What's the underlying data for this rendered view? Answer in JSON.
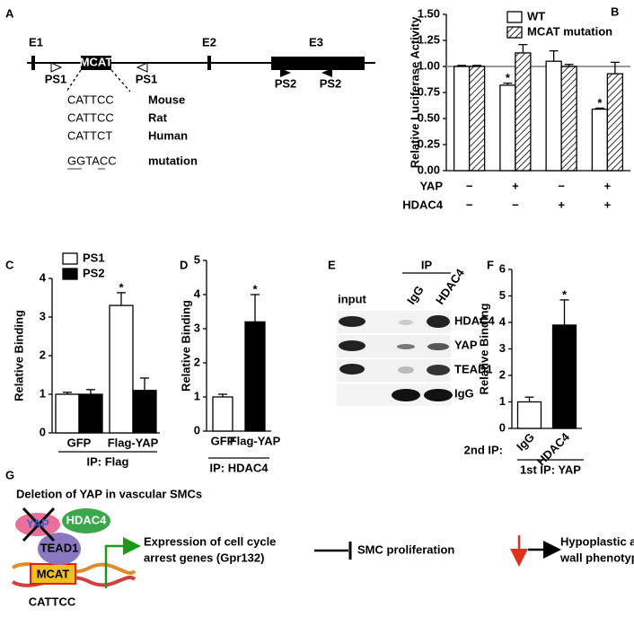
{
  "panel_labels": [
    "A",
    "B",
    "C",
    "D",
    "E",
    "F",
    "G"
  ],
  "panel_a": {
    "exons": [
      "E1",
      "E2",
      "E3"
    ],
    "element": "MCAT",
    "primers": [
      "PS1",
      "PS1",
      "PS2",
      "PS2"
    ],
    "sequences": [
      {
        "sequence": "CATTCC",
        "label": "Mouse"
      },
      {
        "sequence": "CATTCC",
        "label": "Rat"
      },
      {
        "sequence": "CATTCT",
        "label": "Human"
      },
      {
        "sequence": "GGTACC",
        "label": "mutation"
      }
    ]
  },
  "chart_data": [
    {
      "type": "bar",
      "ylabel": "Relative Luciferase Activity",
      "series": [
        {
          "name": "WT",
          "color": "#ffffff",
          "values": [
            1,
            0.82,
            1.05,
            0.59
          ],
          "errors": [
            0.01,
            0.02,
            0.1,
            0.01
          ],
          "significance": [
            null,
            "*",
            null,
            "*"
          ]
        },
        {
          "name": "MCAT mutation",
          "color": "#ffffff",
          "hatch": true,
          "values": [
            1,
            1.13,
            1,
            0.93
          ],
          "errors": [
            0.01,
            0.08,
            0.02,
            0.11
          ]
        }
      ],
      "conditions": [
        {
          "name": "YAP",
          "values": [
            "−",
            "+",
            "−",
            "+"
          ]
        },
        {
          "name": "HDAC4",
          "values": [
            "−",
            "−",
            "+",
            "+"
          ]
        }
      ],
      "reference_line": 1,
      "reference_color": "#999999",
      "ylim": [
        0,
        1.5
      ],
      "yticks": [
        {
          "value": 0,
          "label": "0.00"
        },
        {
          "value": 0.25,
          "label": "0.25"
        },
        {
          "value": 0.5,
          "label": "0.50"
        },
        {
          "value": 0.75,
          "label": "0.75"
        },
        {
          "value": 1,
          "label": "1.00"
        },
        {
          "value": 1.25,
          "label": "1.25"
        },
        {
          "value": 1.5,
          "label": "1.50"
        }
      ],
      "legend": "top-right"
    },
    {
      "type": "bar",
      "ylabel": "Relative Binding",
      "categories": [
        "GFP",
        "Flag-YAP"
      ],
      "series": [
        {
          "name": "PS1",
          "color": "#ffffff",
          "values": [
            1,
            3.3
          ],
          "errors": [
            0.05,
            0.33
          ],
          "significance": [
            null,
            "*"
          ]
        },
        {
          "name": "PS2",
          "color": "#000000",
          "values": [
            1,
            1.1
          ],
          "errors": [
            0.12,
            0.32
          ]
        }
      ],
      "footer": "IP: Flag",
      "ylim": [
        0,
        4
      ],
      "yticks": [
        0,
        1,
        2,
        3,
        4
      ],
      "legend": "top-left"
    },
    {
      "type": "bar",
      "ylabel": "Relative Binding",
      "categories": [
        "GFP",
        "Flag-YAP"
      ],
      "values": [
        1,
        3.2
      ],
      "colors": [
        "#ffffff",
        "#000000"
      ],
      "errors": [
        0.08,
        0.8
      ],
      "significance": [
        null,
        "*"
      ],
      "footer": "IP: HDAC4",
      "ylim": [
        0,
        5
      ],
      "yticks": [
        0,
        1,
        2,
        3,
        4,
        5
      ]
    },
    {
      "type": "bar",
      "ylabel": "Relative Binding",
      "categories": [
        "IgG",
        "HDAC4"
      ],
      "values": [
        1,
        3.9
      ],
      "colors": [
        "#ffffff",
        "#000000"
      ],
      "errors": [
        0.18,
        0.95
      ],
      "significance": [
        null,
        "*"
      ],
      "xlabel": "2nd IP:",
      "footer": "1st IP: YAP",
      "ylim": [
        0,
        6
      ],
      "yticks": [
        0,
        1,
        2,
        3,
        4,
        5,
        6
      ]
    }
  ],
  "panel_e": {
    "group_label": "IP",
    "lanes": [
      "input",
      "IgG",
      "HDAC4"
    ],
    "rows": [
      "HDAC4",
      "YAP",
      "TEAD1",
      "IgG"
    ]
  },
  "panel_g": {
    "title": "Deletion of YAP in vascular SMCs",
    "proteins": [
      "YAP",
      "HDAC4",
      "TEAD1"
    ],
    "element": "MCAT",
    "sequence": "CATTCC",
    "outcome_1": [
      "Expression of cell cycle",
      "arrest genes (Gpr132)"
    ],
    "outcome_2": "SMC proliferation",
    "outcome_3": [
      "Hypoplastic arterial",
      "wall phenotype"
    ]
  }
}
